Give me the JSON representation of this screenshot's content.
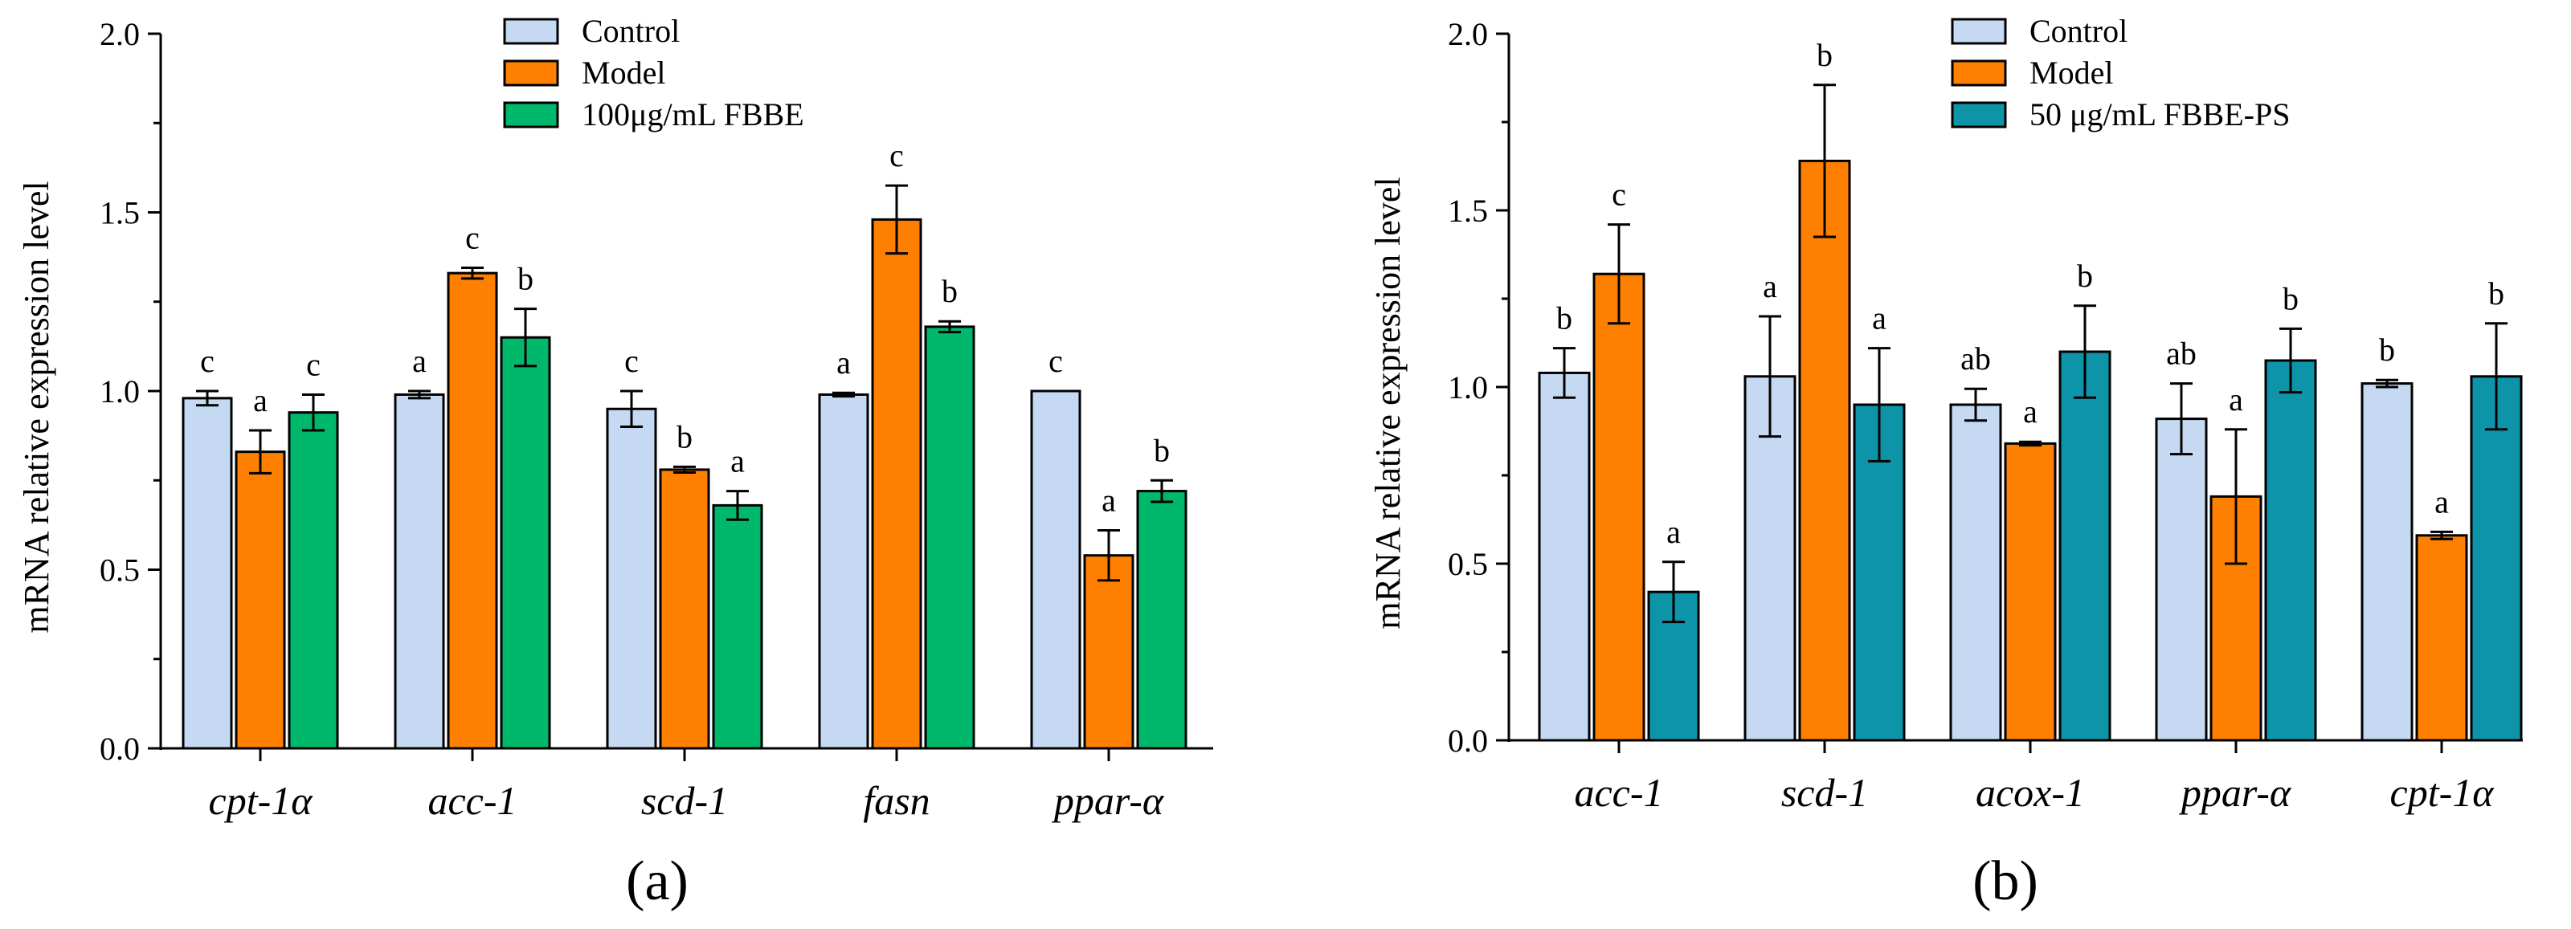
{
  "chart_data": [
    {
      "type": "bar",
      "panel_label": "(a)",
      "ylabel": "mRNA relative expression level",
      "xlabel": "",
      "ylim": [
        0,
        2.0
      ],
      "yticks": [
        "0.0",
        "0.5",
        "1.0",
        "1.5",
        "2.0"
      ],
      "ytick_values": [
        0,
        0.5,
        1.0,
        1.5,
        2.0
      ],
      "categories": [
        "cpt-1α",
        "acc-1",
        "scd-1",
        "fasn",
        "ppar-α"
      ],
      "legend_position": "top",
      "series": [
        {
          "name": "Control",
          "color": "#C5DAF2",
          "values": [
            0.98,
            0.99,
            0.95,
            0.99,
            1.0
          ],
          "errors": [
            0.02,
            0.01,
            0.05,
            0.005,
            0.0
          ],
          "labels": [
            "c",
            "a",
            "c",
            "a",
            "c"
          ]
        },
        {
          "name": "Model",
          "color": "#FF7F00",
          "values": [
            0.83,
            1.33,
            0.78,
            1.48,
            0.54
          ],
          "errors": [
            0.06,
            0.015,
            0.008,
            0.095,
            0.07
          ],
          "labels": [
            "a",
            "c",
            "b",
            "c",
            "a"
          ]
        },
        {
          "name": "100μg/mL FBBE",
          "color": "#00B86B",
          "values": [
            0.94,
            1.15,
            0.68,
            1.18,
            0.72
          ],
          "errors": [
            0.05,
            0.08,
            0.04,
            0.015,
            0.03
          ],
          "labels": [
            "c",
            "b",
            "a",
            "b",
            "b"
          ]
        }
      ]
    },
    {
      "type": "bar",
      "panel_label": "(b)",
      "ylabel": "mRNA relative expression level",
      "xlabel": "",
      "ylim": [
        0,
        2.0
      ],
      "yticks": [
        "0.0",
        "0.5",
        "1.0",
        "1.5",
        "2.0"
      ],
      "ytick_values": [
        0,
        0.5,
        1.0,
        1.5,
        2.0
      ],
      "categories": [
        "acc-1",
        "scd-1",
        "acox-1",
        "ppar-α",
        "cpt-1α"
      ],
      "legend_position": "top",
      "series": [
        {
          "name": "Control",
          "color": "#C5DAF2",
          "values": [
            1.04,
            1.03,
            0.95,
            0.91,
            1.01
          ],
          "errors": [
            0.07,
            0.17,
            0.045,
            0.1,
            0.01
          ],
          "labels": [
            "b",
            "a",
            "ab",
            "ab",
            "b"
          ]
        },
        {
          "name": "Model",
          "color": "#FF7F00",
          "values": [
            1.32,
            1.64,
            0.84,
            0.69,
            0.58
          ],
          "errors": [
            0.14,
            0.215,
            0.005,
            0.19,
            0.01
          ],
          "labels": [
            "c",
            "b",
            "a",
            "a",
            "a"
          ]
        },
        {
          "name": "50 μg/mL FBBE-PS",
          "color": "#0E94A8",
          "values": [
            0.42,
            0.95,
            1.1,
            1.075,
            1.03
          ],
          "errors": [
            0.085,
            0.16,
            0.13,
            0.09,
            0.15
          ],
          "labels": [
            "a",
            "a",
            "b",
            "b",
            "b"
          ]
        }
      ]
    }
  ]
}
